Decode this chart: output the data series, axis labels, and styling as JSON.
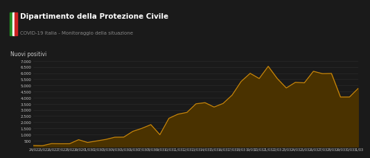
{
  "title": "Dipartimento della Protezione Civile",
  "subtitle": "COVID-19 Italia - Monitoraggio della situazione",
  "ylabel": "Nuovi positivi",
  "bg_color": "#1a1a1a",
  "header_bg": "#222222",
  "chart_bg": "#1e1e1e",
  "line_color": "#c8860a",
  "fill_color": "#4a3200",
  "text_color": "#cccccc",
  "subtitle_color": "#888888",
  "x_labels": [
    "24/02",
    "25/02",
    "26/02",
    "27/02",
    "28/02",
    "29/02",
    "01/03",
    "02/03",
    "03/03",
    "04/03",
    "05/03",
    "06/03",
    "07/03",
    "08/03",
    "09/03",
    "10/03",
    "11/03",
    "12/03",
    "13/03",
    "14/03",
    "15/03",
    "16/03",
    "17/03",
    "18/03",
    "19/03",
    "20/03",
    "21/03",
    "22/03",
    "23/03",
    "24/03",
    "25/03",
    "26/03",
    "27/03",
    "28/03",
    "29/03",
    "30/03",
    "31/03"
  ],
  "values": [
    93,
    78,
    250,
    238,
    240,
    566,
    342,
    466,
    587,
    769,
    778,
    1247,
    1492,
    1797,
    977,
    2313,
    2651,
    2795,
    3497,
    3590,
    3233,
    3526,
    4207,
    5322,
    5986,
    5560,
    6557,
    5560,
    4789,
    5249,
    5210,
    6153,
    5959,
    5974,
    4050,
    4053,
    4782
  ],
  "ylim": [
    0,
    7000
  ],
  "yticks": [
    500,
    1000,
    1500,
    2000,
    2500,
    3000,
    3500,
    4000,
    4500,
    5000,
    5500,
    6000,
    6500,
    7000
  ],
  "grid_color": "#2e2e2e",
  "separator_color": "#444444"
}
